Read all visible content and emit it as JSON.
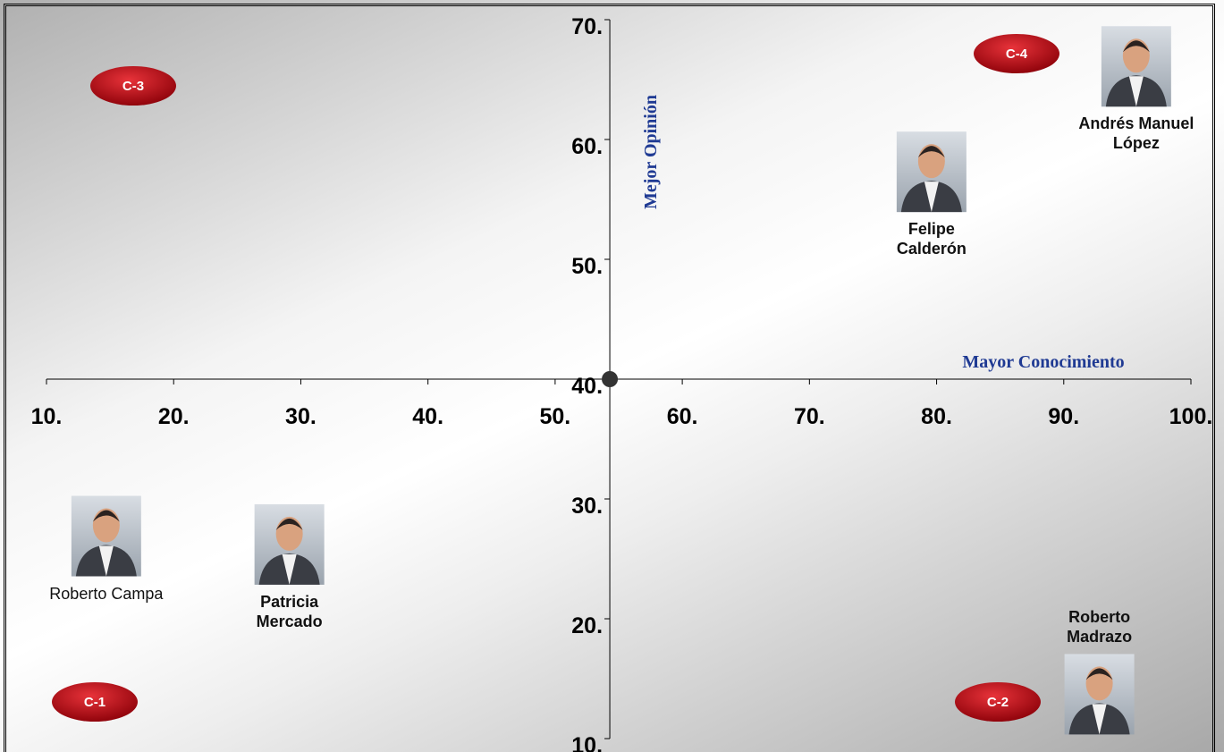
{
  "chart_data": {
    "type": "scatter",
    "x_label": "Mayor Conocimiento",
    "y_label": "Mejor Opinión",
    "xlim": [
      10,
      100
    ],
    "ylim": [
      10,
      70
    ],
    "xticks": [
      {
        "value": 10,
        "label": "10."
      },
      {
        "value": 20,
        "label": "20."
      },
      {
        "value": 30,
        "label": "30."
      },
      {
        "value": 40,
        "label": "40."
      },
      {
        "value": 50,
        "label": "50."
      },
      {
        "value": 60,
        "label": "60."
      },
      {
        "value": 70,
        "label": "70."
      },
      {
        "value": 80,
        "label": "80."
      },
      {
        "value": 90,
        "label": "90."
      },
      {
        "value": 100,
        "label": "100."
      }
    ],
    "yticks": [
      {
        "value": 10,
        "label": "10."
      },
      {
        "value": 20,
        "label": "20."
      },
      {
        "value": 30,
        "label": "30."
      },
      {
        "value": 40,
        "label": "40."
      },
      {
        "value": 50,
        "label": "50."
      },
      {
        "value": 60,
        "label": "60."
      },
      {
        "value": 70,
        "label": "70."
      }
    ],
    "origin": [
      54.3,
      40
    ],
    "points": [
      {
        "name": "Andrés Manuel López",
        "x": 95.7,
        "y": 66.1,
        "label": "below",
        "bold": true
      },
      {
        "name": "Felipe Calderón",
        "x": 79.6,
        "y": 57.3,
        "label": "below",
        "bold": true
      },
      {
        "name": "Roberto Madrazo",
        "x": 92.8,
        "y": 13.7,
        "label": "above",
        "bold": true
      },
      {
        "name": "Roberto Campa",
        "x": 14.7,
        "y": 26.9,
        "label": "below",
        "bold": false
      },
      {
        "name": "Patricia Mercado",
        "x": 29.1,
        "y": 26.2,
        "label": "below",
        "bold": true
      }
    ],
    "annotations": [
      "C-3",
      "C-4",
      "C-1",
      "C-2"
    ]
  }
}
